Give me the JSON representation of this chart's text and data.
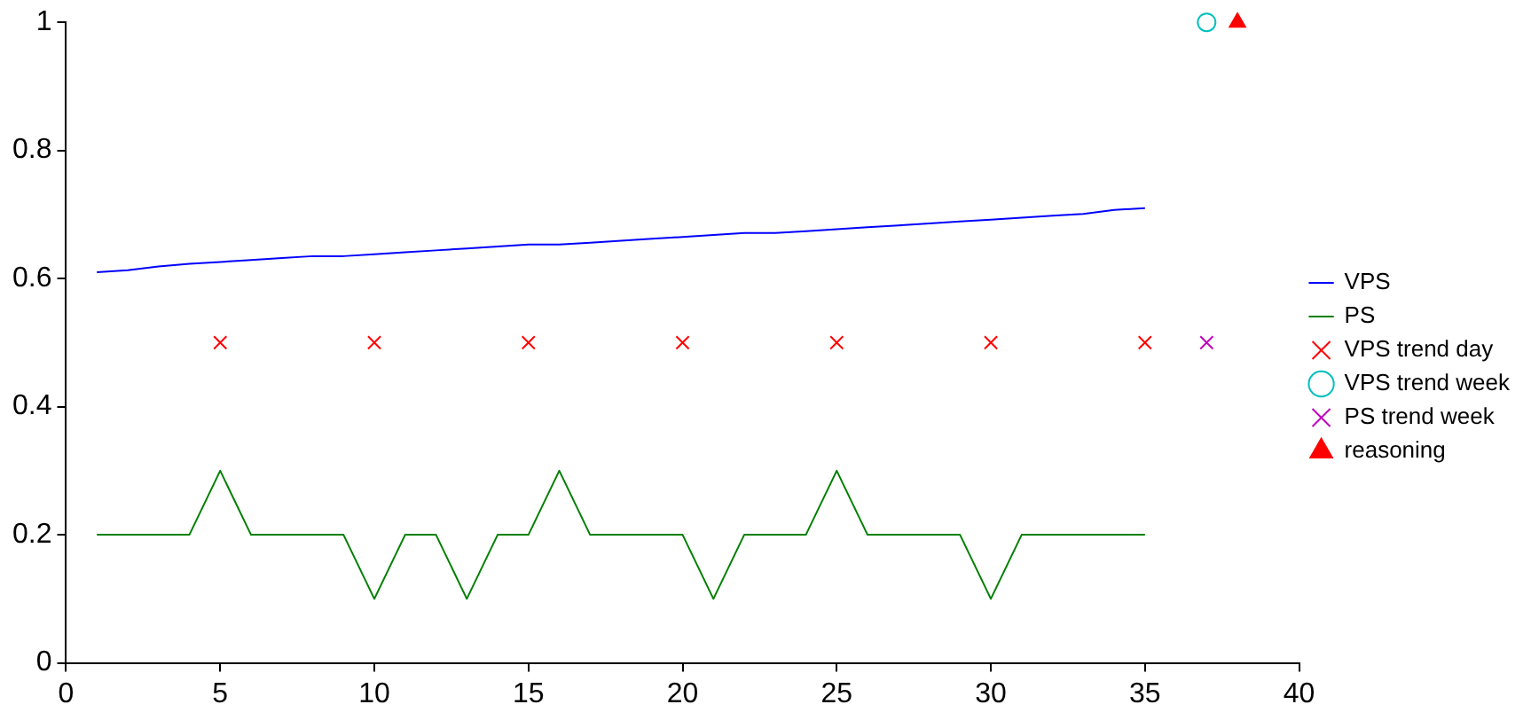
{
  "chart_data": {
    "type": "line",
    "x": [
      1,
      2,
      3,
      4,
      5,
      6,
      7,
      8,
      9,
      10,
      11,
      12,
      13,
      14,
      15,
      16,
      17,
      18,
      19,
      20,
      21,
      22,
      23,
      24,
      25,
      26,
      27,
      28,
      29,
      30,
      31,
      32,
      33,
      34,
      35
    ],
    "xlim": [
      0,
      40
    ],
    "xticks": [
      0,
      5,
      10,
      15,
      20,
      25,
      30,
      35,
      40
    ],
    "ylim": [
      0,
      1
    ],
    "yticks": [
      0,
      0.2,
      0.4,
      0.6,
      0.8,
      {
        "value": 1,
        "label": "1"
      }
    ],
    "grid": false,
    "legend": "right",
    "series": [
      {
        "name": "VPS",
        "type": "line",
        "marker": "none",
        "color": "#0000ff",
        "values": [
          0.61,
          0.613,
          0.619,
          0.623,
          0.626,
          0.629,
          0.632,
          0.635,
          0.635,
          0.638,
          0.641,
          0.644,
          0.647,
          0.65,
          0.653,
          0.653,
          0.656,
          0.659,
          0.662,
          0.665,
          0.668,
          0.671,
          0.671,
          0.674,
          0.677,
          0.68,
          0.683,
          0.686,
          0.689,
          0.692,
          0.695,
          0.698,
          0.701,
          0.707,
          0.71
        ]
      },
      {
        "name": "PS",
        "type": "line",
        "marker": "none",
        "color": "#008000",
        "values": [
          0.2,
          0.2,
          0.2,
          0.2,
          0.3,
          0.2,
          0.2,
          0.2,
          0.2,
          0.1,
          0.2,
          0.2,
          0.1,
          0.2,
          0.2,
          0.3,
          0.2,
          0.2,
          0.2,
          0.2,
          0.1,
          0.2,
          0.2,
          0.2,
          0.3,
          0.2,
          0.2,
          0.2,
          0.2,
          0.1,
          0.2,
          0.2,
          0.2,
          0.2,
          0.2
        ]
      },
      {
        "name": "VPS trend day",
        "type": "scatter",
        "marker": "cross",
        "color": "#ff0000",
        "x": [
          5,
          10,
          15,
          20,
          25,
          30,
          35
        ],
        "values": [
          0.5,
          0.5,
          0.5,
          0.5,
          0.5,
          0.5,
          0.5
        ]
      },
      {
        "name": "VPS trend week",
        "type": "scatter",
        "marker": "circle",
        "color": "#00bfbf",
        "x": [
          37
        ],
        "values": [
          1
        ]
      },
      {
        "name": "PS trend week",
        "type": "scatter",
        "marker": "cross",
        "color": "#bf00bf",
        "x": [
          37
        ],
        "values": [
          0.5
        ]
      },
      {
        "name": "reasoning",
        "type": "scatter",
        "marker": "triangle",
        "color": "#ff0000",
        "x": [
          38
        ],
        "values": [
          1
        ]
      }
    ]
  }
}
